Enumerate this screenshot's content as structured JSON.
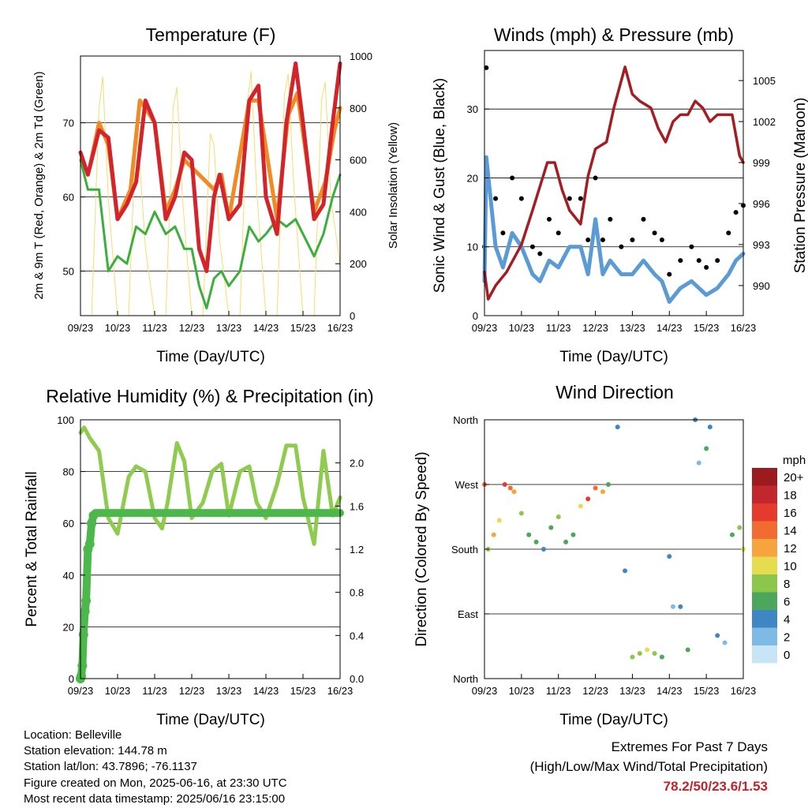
{
  "colors": {
    "red": "#d4242b",
    "orange": "#f08a24",
    "green": "#3cae3c",
    "yellow": "#f7dc6f",
    "blue": "#5b9bd5",
    "black": "#000000",
    "maroon": "#a31d22",
    "rh": "#8fcb4f",
    "precip": "#4cb84c",
    "extremes": "#c0232b"
  },
  "time_ticks": [
    "09/23",
    "10/23",
    "11/23",
    "12/23",
    "13/23",
    "14/23",
    "15/23",
    "16/23"
  ],
  "xlabel": "Time (Day/UTC)",
  "info": {
    "location": "Location: Belleville",
    "elevation": "Station elevation: 144.78 m",
    "latlon": "Station lat/lon: 43.7896; -76.1137",
    "created": "Figure created on Mon, 2025-06-16, at 23:30 UTC",
    "recent": "Most recent data timestamp: 2025/06/16 23:15:00"
  },
  "extremes": {
    "title": "Extremes For Past 7 Days",
    "subtitle": "(High/Low/Max Wind/Total Precipitation)",
    "values": "78.2/50/23.6/1.53"
  },
  "chart_data": [
    {
      "type": "line",
      "title": "Temperature (F)",
      "xlabel": "Time (Day/UTC)",
      "ylabel": "2m & 9m T (Red, Orange) & 2m Td (Green)",
      "y2label": "Solar Insolation (Yellow)",
      "ylim": [
        44,
        79
      ],
      "yticks": [
        50,
        60,
        70
      ],
      "y2lim": [
        0,
        1000
      ],
      "y2ticks": [
        0,
        200,
        400,
        600,
        800,
        1000
      ],
      "grid": true,
      "series": [
        {
          "color": "red",
          "axis": "y",
          "x": [
            9.0,
            9.2,
            9.5,
            9.75,
            10.0,
            10.25,
            10.5,
            10.75,
            11.0,
            11.3,
            11.55,
            11.8,
            12.0,
            12.2,
            12.4,
            12.6,
            12.75,
            13.0,
            13.3,
            13.55,
            13.8,
            14.0,
            14.3,
            14.55,
            14.8,
            15.0,
            15.3,
            15.55,
            15.8,
            16.0
          ],
          "y": [
            66,
            63,
            69,
            68,
            57,
            59,
            62,
            73,
            70,
            57,
            60,
            66,
            65,
            53,
            50,
            60,
            63,
            57,
            59,
            73,
            75,
            60,
            55,
            70,
            78,
            70,
            57,
            59,
            70,
            78
          ]
        },
        {
          "color": "orange",
          "axis": "y",
          "x": [
            9.25,
            9.5,
            9.75,
            10.0,
            10.35,
            10.6,
            10.75,
            11.0,
            11.3,
            11.55,
            11.8,
            12.0,
            12.6,
            12.8,
            13.0,
            13.55,
            13.8,
            14.3,
            14.6,
            14.85,
            15.3,
            15.6,
            15.85,
            16.0
          ],
          "y": [
            64,
            70,
            67,
            57,
            61,
            73,
            72,
            70,
            58,
            61,
            65,
            64,
            61,
            63,
            57,
            73,
            73,
            57,
            71,
            74,
            58,
            62,
            69,
            72
          ]
        },
        {
          "color": "green",
          "axis": "y",
          "x": [
            9.0,
            9.2,
            9.5,
            9.75,
            10.0,
            10.25,
            10.5,
            10.75,
            11.0,
            11.3,
            11.55,
            11.8,
            12.0,
            12.2,
            12.4,
            12.6,
            12.8,
            13.0,
            13.3,
            13.55,
            13.8,
            14.0,
            14.3,
            14.55,
            14.8,
            15.0,
            15.3,
            15.55,
            15.8,
            16.0
          ],
          "y": [
            65,
            61,
            61,
            50,
            52,
            51,
            56,
            55,
            58,
            55,
            56,
            53,
            53,
            48,
            45,
            49,
            50,
            48,
            50,
            56,
            54,
            55,
            57,
            56,
            57,
            55,
            52,
            55,
            60,
            63
          ]
        },
        {
          "color": "yellow",
          "axis": "y2",
          "x": [
            9.0,
            9.3,
            9.5,
            9.6,
            9.75,
            10.0,
            10.3,
            10.5,
            10.6,
            10.75,
            11.0,
            11.3,
            11.5,
            11.6,
            11.75,
            12.0,
            12.3,
            12.5,
            12.6,
            12.75,
            13.0,
            13.3,
            13.5,
            13.6,
            13.75,
            14.0,
            14.3,
            14.5,
            14.6,
            14.75,
            15.0,
            15.3,
            15.5,
            15.6,
            15.75,
            16.0
          ],
          "y": [
            0,
            0,
            800,
            920,
            450,
            0,
            0,
            750,
            580,
            260,
            0,
            0,
            800,
            880,
            450,
            0,
            0,
            700,
            660,
            290,
            0,
            0,
            820,
            940,
            480,
            0,
            0,
            850,
            930,
            500,
            0,
            0,
            830,
            900,
            450,
            200
          ]
        }
      ]
    },
    {
      "type": "scatter",
      "title": "Winds (mph) & Pressure (mb)",
      "xlabel": "Time (Day/UTC)",
      "ylabel": "Sonic Wind & Gust (Blue, Black)",
      "y2label": "Station Pressure (Maroon)",
      "ylim": [
        0,
        38.5
      ],
      "yticks": [
        0,
        10,
        20,
        30
      ],
      "y2lim": [
        987.8,
        1007.2
      ],
      "y2ticks": [
        990,
        993,
        996,
        999,
        1002,
        1005
      ],
      "grid": true,
      "series": [
        {
          "color": "black",
          "name": "",
          "x": [
            9.0,
            9.05,
            9.3,
            9.5,
            9.75,
            10.0,
            10.3,
            10.5,
            10.75,
            11.0,
            11.3,
            11.6,
            11.8,
            12.0,
            12.2,
            12.4,
            12.7,
            13.0,
            13.3,
            13.6,
            13.8,
            14.0,
            14.3,
            14.6,
            14.8,
            15.0,
            15.3,
            15.6,
            15.8,
            16.0
          ],
          "y": [
            10,
            36,
            17,
            12,
            20,
            17,
            10,
            9,
            14,
            12,
            17,
            17,
            11,
            20,
            11,
            14,
            10,
            11,
            14,
            12,
            11,
            6,
            8,
            10,
            8,
            7,
            8,
            12,
            15,
            16
          ]
        },
        {
          "color": "blue",
          "name": "",
          "x": [
            9.0,
            9.05,
            9.3,
            9.5,
            9.75,
            10.0,
            10.3,
            10.5,
            10.75,
            11.0,
            11.3,
            11.6,
            11.8,
            12.0,
            12.2,
            12.4,
            12.7,
            13.0,
            13.3,
            13.6,
            13.8,
            14.0,
            14.3,
            14.6,
            14.8,
            15.0,
            15.3,
            15.6,
            15.8,
            16.0
          ],
          "y": [
            5,
            23,
            10,
            7,
            12,
            10,
            6,
            5,
            8,
            7,
            10,
            10,
            6,
            14,
            6,
            8,
            6,
            6,
            8,
            6,
            5,
            2,
            4,
            5,
            4,
            3,
            4,
            6,
            8,
            9
          ]
        },
        {
          "color": "maroon",
          "name": "",
          "axis": "y2",
          "x": [
            9.0,
            9.1,
            9.3,
            9.6,
            10.0,
            10.3,
            10.7,
            10.9,
            11.1,
            11.3,
            11.6,
            11.8,
            12.0,
            12.3,
            12.5,
            12.8,
            13.0,
            13.2,
            13.5,
            13.7,
            13.9,
            14.1,
            14.3,
            14.5,
            14.7,
            14.9,
            15.1,
            15.3,
            15.5,
            15.7,
            15.9,
            16.0
          ],
          "y": [
            991,
            989,
            990,
            991,
            993,
            995.5,
            999,
            999,
            997,
            995.5,
            994.5,
            998,
            1000,
            1000.5,
            1003,
            1006,
            1004,
            1003.5,
            1003,
            1001.5,
            1000.5,
            1002,
            1002.5,
            1002.5,
            1003.5,
            1003,
            1002,
            1002.5,
            1002.5,
            1002.5,
            999.5,
            999
          ]
        }
      ]
    },
    {
      "type": "line",
      "title": "Relative Humidity (%) & Precipitation (in)",
      "xlabel": "Time (Day/UTC)",
      "ylabel": "Percent & Total Rainfall",
      "ylim": [
        0,
        100
      ],
      "yticks": [
        0,
        20,
        40,
        60,
        80,
        100
      ],
      "y2lim": [
        0,
        2.4
      ],
      "y2ticks": [
        "0.0",
        "0.4",
        "0.8",
        "1.2",
        "1.6",
        "2.0"
      ],
      "grid": true,
      "series": [
        {
          "color": "rh",
          "x": [
            9.0,
            9.1,
            9.25,
            9.5,
            9.75,
            10.0,
            10.3,
            10.5,
            10.75,
            11.0,
            11.2,
            11.35,
            11.6,
            11.8,
            12.0,
            12.3,
            12.55,
            12.8,
            13.0,
            13.3,
            13.55,
            13.75,
            14.0,
            14.3,
            14.55,
            14.8,
            15.0,
            15.3,
            15.55,
            15.8,
            16.0
          ],
          "y": [
            95,
            97,
            93,
            88,
            62,
            56,
            78,
            82,
            80,
            62,
            58,
            68,
            91,
            84,
            62,
            68,
            80,
            83,
            63,
            80,
            82,
            68,
            62,
            75,
            90,
            90,
            70,
            52,
            88,
            63,
            70
          ]
        },
        {
          "color": "precip",
          "x": [
            9.0,
            9.02,
            9.05,
            9.08,
            9.12,
            9.15,
            9.2,
            9.25,
            9.3,
            9.35,
            9.4,
            9.5,
            10.0,
            11.0,
            12.0,
            13.0,
            14.0,
            15.0,
            16.0
          ],
          "y": [
            0,
            1,
            5,
            17,
            26,
            30,
            50,
            52,
            60,
            63,
            64,
            64,
            64,
            64,
            64,
            64,
            64,
            64,
            64
          ]
        }
      ]
    },
    {
      "type": "scatter",
      "title": "Wind Direction",
      "xlabel": "Time (Day/UTC)",
      "ylabel": "Direction (Colored By Speed)",
      "ylim": [
        0,
        360
      ],
      "yticks": [
        "North",
        "East",
        "South",
        "West",
        "North"
      ],
      "legend": {
        "title": "mph",
        "labels": [
          "20+",
          "18",
          "16",
          "14",
          "12",
          "10",
          "8",
          "6",
          "4",
          "2",
          "0"
        ],
        "colors": [
          "#9b1b1e",
          "#c3272e",
          "#e53b2f",
          "#f26b30",
          "#f7a43e",
          "#e6dc4f",
          "#8cc64a",
          "#4ca65c",
          "#3f86c4",
          "#7fb9e6",
          "#c8e5f6"
        ],
        "placement": "right"
      },
      "series": [
        {
          "name": "",
          "x": [
            9.0,
            9.1,
            9.25,
            9.4,
            9.55,
            9.7,
            9.8,
            10.0,
            10.2,
            10.4,
            10.6,
            10.8,
            11.0,
            11.2,
            11.4,
            11.6,
            11.8,
            12.0,
            12.2,
            12.35,
            12.6,
            12.8,
            13.0,
            13.2,
            13.4,
            13.6,
            13.8,
            14.0,
            14.1,
            14.3,
            14.5,
            14.7,
            14.8,
            15.0,
            15.1,
            15.3,
            15.5,
            15.7,
            15.9,
            16.0
          ],
          "y": [
            270,
            180,
            200,
            220,
            270,
            265,
            260,
            230,
            200,
            190,
            180,
            210,
            225,
            190,
            200,
            240,
            250,
            265,
            260,
            270,
            350,
            150,
            30,
            35,
            40,
            35,
            30,
            170,
            100,
            100,
            40,
            360,
            300,
            320,
            350,
            60,
            50,
            200,
            210,
            180
          ],
          "speed": [
            14,
            8,
            12,
            10,
            16,
            14,
            12,
            8,
            6,
            6,
            4,
            6,
            8,
            6,
            6,
            10,
            16,
            14,
            12,
            6,
            4,
            4,
            8,
            8,
            10,
            8,
            6,
            4,
            2,
            4,
            6,
            4,
            2,
            6,
            4,
            4,
            2,
            6,
            8,
            10
          ]
        }
      ]
    }
  ]
}
